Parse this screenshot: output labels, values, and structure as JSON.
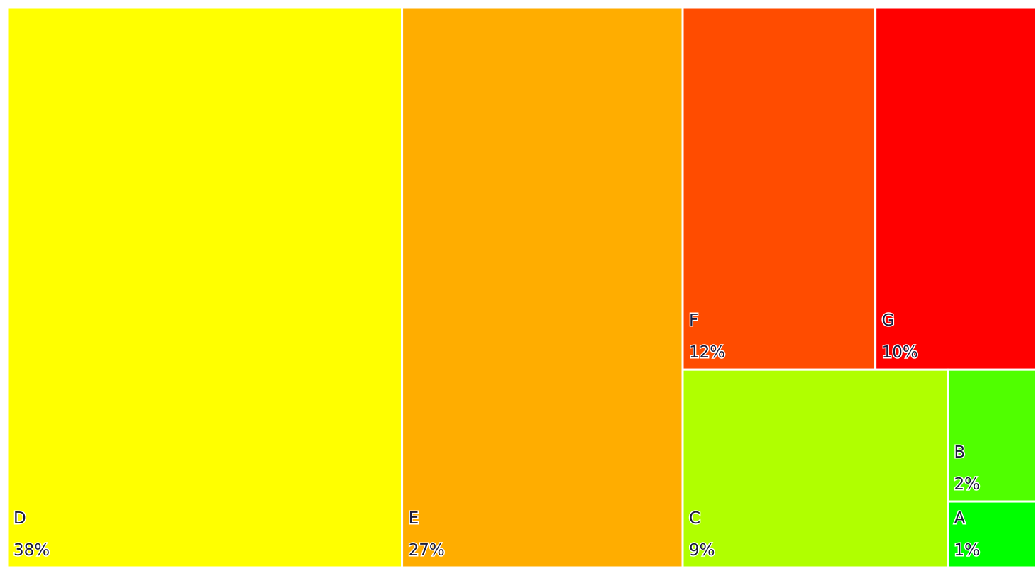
{
  "chart_data": {
    "type": "treemap",
    "categories": [
      "D",
      "E",
      "F",
      "G",
      "C",
      "B",
      "A"
    ],
    "values": [
      38,
      27,
      12,
      10,
      9,
      2,
      1
    ],
    "value_labels": [
      "38%",
      "27%",
      "12%",
      "10%",
      "9%",
      "2%",
      "1%"
    ],
    "colors": [
      "#ffff00",
      "#ffad00",
      "#ff4c00",
      "#ff0000",
      "#b0ff00",
      "#50ff00",
      "#00ff00"
    ]
  }
}
